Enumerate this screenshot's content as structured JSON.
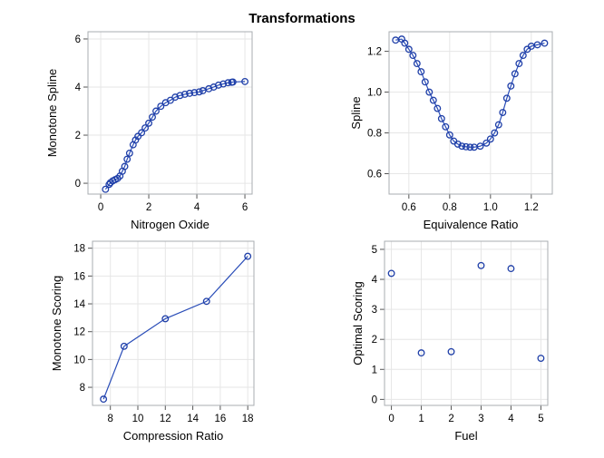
{
  "title": "Transformations",
  "colors": {
    "marker": "#1f3fa8",
    "line": "#2a4db8",
    "grid": "#e6e6e6",
    "frame": "#a8adb2"
  },
  "chart_data": [
    {
      "type": "line",
      "xlabel": "Nitrogen Oxide",
      "ylabel": "Monotone Spline",
      "xlim": [
        -0.53,
        6.3
      ],
      "ylim": [
        -0.45,
        6.3
      ],
      "xticks": [
        0,
        2,
        4,
        6
      ],
      "yticks": [
        0,
        2,
        4,
        6
      ],
      "grid": true,
      "markers": true,
      "connect": true,
      "x": [
        0.2,
        0.35,
        0.4,
        0.5,
        0.6,
        0.7,
        0.8,
        0.9,
        1.0,
        1.1,
        1.2,
        1.35,
        1.45,
        1.55,
        1.7,
        1.85,
        2.0,
        2.15,
        2.3,
        2.5,
        2.7,
        2.9,
        3.1,
        3.3,
        3.5,
        3.7,
        3.9,
        4.1,
        4.25,
        4.5,
        4.7,
        4.9,
        5.1,
        5.3,
        5.45,
        5.5,
        6.0
      ],
      "y": [
        -0.25,
        -0.05,
        0.02,
        0.1,
        0.15,
        0.2,
        0.3,
        0.5,
        0.7,
        1.0,
        1.25,
        1.6,
        1.8,
        1.95,
        2.1,
        2.3,
        2.5,
        2.75,
        3.0,
        3.2,
        3.35,
        3.45,
        3.58,
        3.65,
        3.7,
        3.74,
        3.77,
        3.8,
        3.85,
        3.93,
        4.0,
        4.08,
        4.13,
        4.18,
        4.2,
        4.21,
        4.23
      ]
    },
    {
      "type": "line",
      "xlabel": "Equivalence Ratio",
      "ylabel": "Spline",
      "xlim": [
        0.503,
        1.303
      ],
      "ylim": [
        0.5,
        1.296
      ],
      "xticks": [
        "0.6",
        "0.8",
        "1.0",
        "1.2"
      ],
      "yticks": [
        "0.6",
        "0.8",
        "1.0",
        "1.2"
      ],
      "grid": true,
      "markers": true,
      "connect": true,
      "x": [
        0.535,
        0.565,
        0.58,
        0.6,
        0.62,
        0.64,
        0.66,
        0.68,
        0.7,
        0.72,
        0.74,
        0.76,
        0.78,
        0.8,
        0.82,
        0.84,
        0.86,
        0.88,
        0.9,
        0.92,
        0.95,
        0.98,
        1.0,
        1.02,
        1.04,
        1.06,
        1.08,
        1.1,
        1.12,
        1.14,
        1.16,
        1.18,
        1.2,
        1.23,
        1.265
      ],
      "y": [
        1.255,
        1.26,
        1.24,
        1.21,
        1.18,
        1.14,
        1.1,
        1.05,
        1.0,
        0.96,
        0.92,
        0.87,
        0.83,
        0.79,
        0.76,
        0.745,
        0.735,
        0.732,
        0.73,
        0.73,
        0.735,
        0.75,
        0.77,
        0.8,
        0.84,
        0.9,
        0.97,
        1.03,
        1.09,
        1.14,
        1.18,
        1.21,
        1.225,
        1.232,
        1.24
      ]
    },
    {
      "type": "line",
      "xlabel": "Compression Ratio",
      "ylabel": "Monotone Scoring",
      "xlim": [
        6.7,
        18.45
      ],
      "ylim": [
        6.7,
        18.5
      ],
      "xticks": [
        8,
        10,
        12,
        14,
        16,
        18
      ],
      "yticks": [
        8,
        10,
        12,
        14,
        16,
        18
      ],
      "grid": true,
      "markers": true,
      "connect": true,
      "x": [
        7.5,
        9,
        12,
        15,
        18
      ],
      "y": [
        7.15,
        10.95,
        12.93,
        14.18,
        17.42
      ]
    },
    {
      "type": "scatter",
      "xlabel": "Fuel",
      "ylabel": "Optimal Scoring",
      "xlim": [
        -0.23,
        5.23
      ],
      "ylim": [
        -0.2,
        5.27
      ],
      "xticks": [
        0,
        1,
        2,
        3,
        4,
        5
      ],
      "yticks": [
        0,
        1,
        2,
        3,
        4,
        5
      ],
      "grid": true,
      "markers": true,
      "connect": false,
      "x": [
        0,
        1,
        2,
        3,
        4,
        5
      ],
      "y": [
        4.2,
        1.55,
        1.59,
        4.46,
        4.36,
        1.37
      ]
    }
  ]
}
